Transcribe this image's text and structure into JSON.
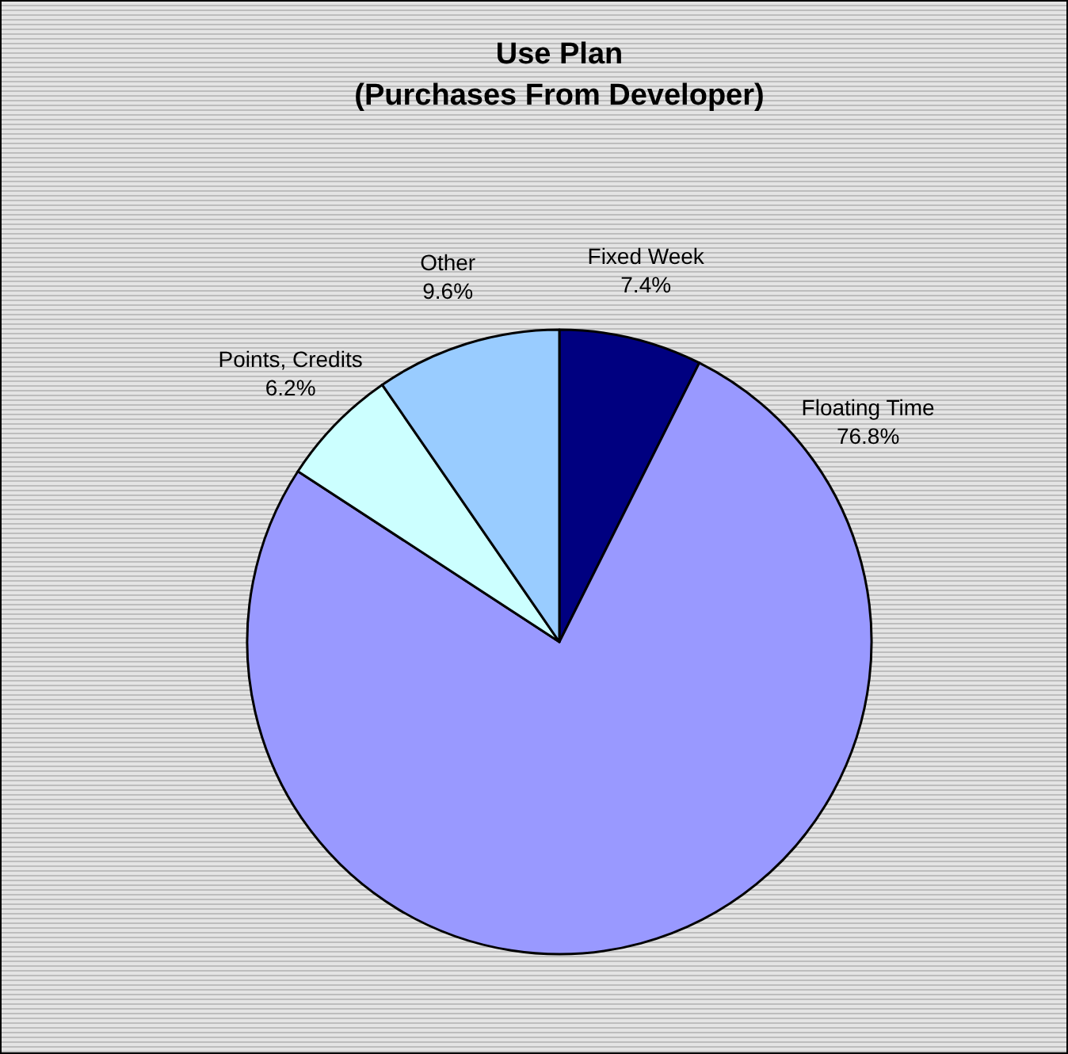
{
  "chart_data": {
    "type": "pie",
    "title": "Use Plan\n(Purchases From Developer)",
    "categories": [
      "Fixed Week",
      "Floating Time",
      "Points, Credits",
      "Other"
    ],
    "values": [
      7.4,
      76.8,
      6.2,
      9.6
    ],
    "value_labels": [
      "7.4%",
      "76.8%",
      "6.2%",
      "9.6%"
    ],
    "colors": [
      "#000080",
      "#9999ff",
      "#ccffff",
      "#99ccff"
    ]
  }
}
